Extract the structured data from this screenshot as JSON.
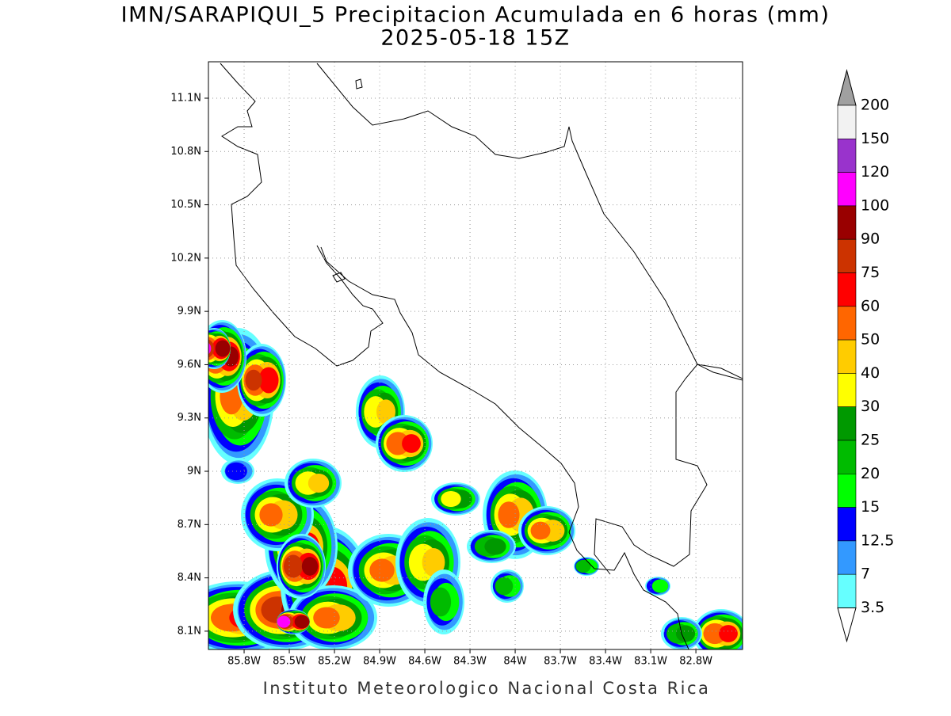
{
  "header": {
    "title": "IMN/SARAPIQUI_5 Precipitacion Acumulada en 6 horas (mm)",
    "subtitle": "2025-05-18 15Z"
  },
  "map": {
    "xlim": [
      -86.037,
      -82.49
    ],
    "ylim": [
      7.997,
      11.305
    ],
    "xticks": [
      {
        "value": -85.8,
        "label": "85.8W"
      },
      {
        "value": -85.5,
        "label": "85.5W"
      },
      {
        "value": -85.2,
        "label": "85.2W"
      },
      {
        "value": -84.9,
        "label": "84.9W"
      },
      {
        "value": -84.6,
        "label": "84.6W"
      },
      {
        "value": -84.3,
        "label": "84.3W"
      },
      {
        "value": -84.0,
        "label": "84W"
      },
      {
        "value": -83.7,
        "label": "83.7W"
      },
      {
        "value": -83.4,
        "label": "83.4W"
      },
      {
        "value": -83.1,
        "label": "83.1W"
      },
      {
        "value": -82.8,
        "label": "82.8W"
      }
    ],
    "yticks": [
      {
        "value": 8.1,
        "label": "8.1N"
      },
      {
        "value": 8.4,
        "label": "8.4N"
      },
      {
        "value": 8.7,
        "label": "8.7N"
      },
      {
        "value": 9.0,
        "label": "9N"
      },
      {
        "value": 9.3,
        "label": "9.3N"
      },
      {
        "value": 9.6,
        "label": "9.6N"
      },
      {
        "value": 9.9,
        "label": "9.9N"
      },
      {
        "value": 10.2,
        "label": "10.2N"
      },
      {
        "value": 10.5,
        "label": "10.5N"
      },
      {
        "value": 10.8,
        "label": "10.8N"
      },
      {
        "value": 11.1,
        "label": "11.1N"
      }
    ],
    "grid": true
  },
  "colorbar": {
    "levels": [
      200,
      150,
      120,
      100,
      90,
      75,
      60,
      50,
      40,
      30,
      25,
      20,
      15,
      12.5,
      7,
      3.5
    ],
    "colors": [
      "#f2f2f2",
      "#9933cc",
      "#ff00ff",
      "#990000",
      "#cc3300",
      "#ff0000",
      "#ff6600",
      "#ffcc00",
      "#ffff00",
      "#009900",
      "#00bb00",
      "#00ff00",
      "#0000ff",
      "#3399ff",
      "#66ffff"
    ],
    "over_color": "#a0a0a0",
    "under_color": "#ffffff"
  },
  "footer": "Instituto Meteorologico Nacional Costa Rica"
}
